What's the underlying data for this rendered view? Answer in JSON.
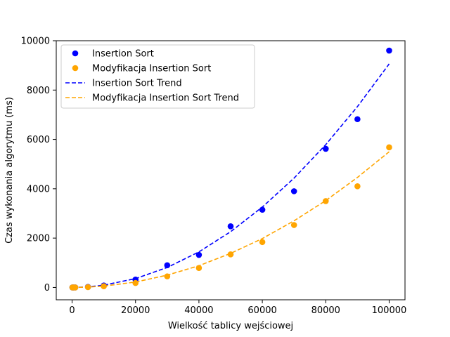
{
  "chart_data": {
    "type": "scatter",
    "xlabel": "Wielkość tablicy wejściowej",
    "ylabel": "Czas wykonania algorytmu (ms)",
    "xlim": [
      -5000,
      105000
    ],
    "ylim": [
      -500,
      10000
    ],
    "xticks": [
      0,
      20000,
      40000,
      60000,
      80000,
      100000
    ],
    "yticks": [
      0,
      2000,
      4000,
      6000,
      8000,
      10000
    ],
    "grid": false,
    "legend_position": "top-left",
    "x": [
      100,
      500,
      1000,
      5000,
      10000,
      20000,
      30000,
      40000,
      50000,
      60000,
      70000,
      80000,
      90000,
      100000
    ],
    "series": [
      {
        "name": "Insertion Sort",
        "kind": "scatter",
        "color": "#0000ff",
        "values": [
          0,
          0,
          1,
          20,
          80,
          320,
          900,
          1320,
          2480,
          3150,
          3900,
          5620,
          6820,
          9600
        ]
      },
      {
        "name": "Modyfikacja Insertion Sort",
        "kind": "scatter",
        "color": "#ffa500",
        "values": [
          0,
          0,
          0,
          12,
          50,
          180,
          450,
          790,
          1340,
          1840,
          2530,
          3500,
          4100,
          5680
        ]
      },
      {
        "name": "Insertion Sort Trend",
        "kind": "line",
        "dash": true,
        "color": "#0000ff",
        "values": [
          0,
          0,
          1,
          24,
          92,
          360,
          810,
          1440,
          2260,
          3260,
          4430,
          5790,
          7330,
          9060
        ]
      },
      {
        "name": "Modyfikacja Insertion Sort Trend",
        "kind": "line",
        "dash": true,
        "color": "#ffa500",
        "values": [
          0,
          0,
          1,
          15,
          56,
          220,
          500,
          880,
          1380,
          1980,
          2700,
          3520,
          4460,
          5500
        ]
      }
    ]
  }
}
